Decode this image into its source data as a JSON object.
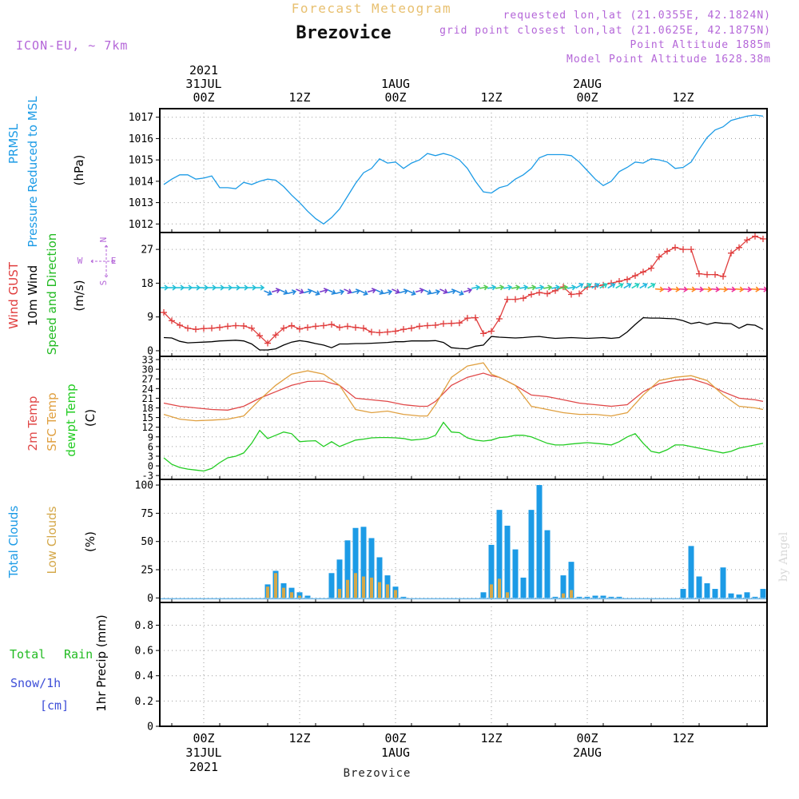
{
  "header": {
    "title_faint": "Forecast Meteogram",
    "station": "Brezovice",
    "model": "ICON-EU, ~ 7km",
    "info": [
      "requested lon,lat (21.0355E, 42.1824N)",
      "grid point closest lon,lat (21.0625E, 42.1875N)",
      "Point Altitude 1885m",
      "Model Point Altitude 1628.38m"
    ],
    "footer_station": "Brezovice",
    "watermark": "by Angel"
  },
  "colors": {
    "pressure": "#1c9be6",
    "gust": "#e03c3c",
    "wind": "#000000",
    "dir": "#22bb22",
    "temp": "#e04848",
    "sfc": "#e0a040",
    "dew": "#22cc22",
    "total_clouds": "#1c9be6",
    "low_clouds": "#d4a84a",
    "rain": "#22bb22",
    "snow": "#3d4ed8",
    "info": "#b466d8",
    "faint": "#e8c070"
  },
  "time_axis": {
    "top_labels": [
      {
        "t": 0,
        "lines": [
          "2021",
          "31JUL",
          "00Z"
        ]
      },
      {
        "t": 12,
        "lines": [
          "12Z"
        ]
      },
      {
        "t": 24,
        "lines": [
          "1AUG",
          "00Z"
        ]
      },
      {
        "t": 36,
        "lines": [
          "12Z"
        ]
      },
      {
        "t": 48,
        "lines": [
          "2AUG",
          "00Z"
        ]
      },
      {
        "t": 60,
        "lines": [
          "12Z"
        ]
      }
    ],
    "bottom_labels": [
      {
        "t": 0,
        "lines": [
          "00Z",
          "31JUL",
          "2021"
        ]
      },
      {
        "t": 12,
        "lines": [
          "12Z"
        ]
      },
      {
        "t": 24,
        "lines": [
          "00Z",
          "1AUG"
        ]
      },
      {
        "t": 36,
        "lines": [
          "12Z"
        ]
      },
      {
        "t": 48,
        "lines": [
          "00Z",
          "2AUG"
        ]
      },
      {
        "t": 60,
        "lines": [
          "12Z"
        ]
      }
    ]
  },
  "chart_data": [
    {
      "type": "line",
      "panel": "pressure",
      "labels": [
        "PRMSL",
        "Pressure Reduced to MSL",
        "(hPa)"
      ],
      "ylim": [
        1011.6,
        1017.4
      ],
      "yticks": [
        1012,
        1013,
        1014,
        1015,
        1016,
        1017
      ],
      "series": [
        {
          "name": "PRMSL",
          "x": [
            -5,
            -4,
            -3,
            -2,
            -1,
            0,
            1,
            2,
            3,
            4,
            5,
            6,
            7,
            8,
            9,
            10,
            11,
            12,
            13,
            14,
            15,
            16,
            17,
            18,
            19,
            20,
            21,
            22,
            23,
            24,
            25,
            26,
            27,
            28,
            29,
            30,
            31,
            32,
            33,
            34,
            35,
            36,
            37,
            38,
            39,
            40,
            41,
            42,
            43,
            44,
            45,
            46,
            47,
            48,
            49,
            50,
            51,
            52,
            53,
            54,
            55,
            56,
            57,
            58,
            59,
            60,
            61,
            62,
            63,
            64,
            65,
            66,
            67,
            68,
            69,
            70
          ],
          "values": [
            1013.85,
            1014.1,
            1014.3,
            1014.3,
            1014.1,
            1014.15,
            1014.25,
            1013.7,
            1013.7,
            1013.65,
            1013.95,
            1013.85,
            1014.0,
            1014.1,
            1014.05,
            1013.75,
            1013.35,
            1013.0,
            1012.6,
            1012.25,
            1012.0,
            1012.3,
            1012.7,
            1013.3,
            1013.9,
            1014.4,
            1014.6,
            1015.05,
            1014.85,
            1014.9,
            1014.6,
            1014.85,
            1015.0,
            1015.3,
            1015.2,
            1015.3,
            1015.2,
            1015.0,
            1014.6,
            1014.0,
            1013.5,
            1013.45,
            1013.7,
            1013.8,
            1014.1,
            1014.3,
            1014.6,
            1015.1,
            1015.25,
            1015.25,
            1015.25,
            1015.2,
            1014.9,
            1014.5,
            1014.1,
            1013.8,
            1014.0,
            1014.45,
            1014.65,
            1014.9,
            1014.85,
            1015.05,
            1015.0,
            1014.9,
            1014.6,
            1014.65,
            1014.9,
            1015.5,
            1016.05,
            1016.4,
            1016.55,
            1016.85,
            1016.95,
            1017.05,
            1017.1,
            1017.05
          ]
        }
      ]
    },
    {
      "type": "line",
      "panel": "wind",
      "labels": [
        "Wind GUST",
        "10m Wind",
        "Speed and Direction",
        "(m/s)"
      ],
      "compass": {
        "n": "N",
        "e": "E",
        "s": "S",
        "w": "W"
      },
      "ylim": [
        -1.5,
        31.5
      ],
      "yticks": [
        0,
        9,
        18,
        27
      ],
      "series": [
        {
          "name": "Wind GUST",
          "x": [
            -5,
            -4,
            -3,
            -2,
            -1,
            0,
            1,
            2,
            3,
            4,
            5,
            6,
            7,
            8,
            9,
            10,
            11,
            12,
            13,
            14,
            15,
            16,
            17,
            18,
            19,
            20,
            21,
            22,
            23,
            24,
            25,
            26,
            27,
            28,
            29,
            30,
            31,
            32,
            33,
            34,
            35,
            36,
            37,
            38,
            39,
            40,
            41,
            42,
            43,
            44,
            45,
            46,
            47,
            48,
            49,
            50,
            51,
            52,
            53,
            54,
            55,
            56,
            57,
            58,
            59,
            60,
            61,
            62,
            63,
            64,
            65,
            66,
            67,
            68,
            69,
            70
          ],
          "values": [
            10.2,
            8.0,
            6.8,
            6.0,
            5.7,
            5.9,
            6.0,
            6.2,
            6.5,
            6.7,
            6.6,
            6.0,
            4.0,
            2.0,
            4.2,
            6.0,
            6.7,
            5.8,
            6.2,
            6.5,
            6.7,
            7.0,
            6.2,
            6.5,
            6.2,
            6.0,
            5.0,
            4.8,
            5.0,
            5.2,
            5.7,
            6.0,
            6.5,
            6.7,
            6.8,
            7.2,
            7.3,
            7.4,
            8.7,
            8.8,
            4.6,
            5.2,
            8.5,
            13.7,
            13.7,
            14.0,
            15.0,
            15.5,
            15.2,
            16.0,
            17.0,
            15.0,
            15.2,
            17.0,
            17.1,
            17.5,
            18.0,
            18.5,
            19.0,
            20.0,
            21.0,
            22.0,
            25.0,
            26.5,
            27.5,
            27.0,
            27.0,
            20.5,
            20.3,
            20.3,
            19.8,
            26.0,
            27.5,
            29.5,
            30.5,
            29.8
          ]
        },
        {
          "name": "10m Wind",
          "x": [
            -5,
            -4,
            -3,
            -2,
            -1,
            0,
            1,
            2,
            3,
            4,
            5,
            6,
            7,
            8,
            9,
            10,
            11,
            12,
            13,
            14,
            15,
            16,
            17,
            18,
            19,
            20,
            21,
            22,
            23,
            24,
            25,
            26,
            27,
            28,
            29,
            30,
            31,
            32,
            33,
            34,
            35,
            36,
            37,
            38,
            39,
            40,
            41,
            42,
            43,
            44,
            45,
            46,
            47,
            48,
            49,
            50,
            51,
            52,
            53,
            54,
            55,
            56,
            57,
            58,
            59,
            60,
            61,
            62,
            63,
            64,
            65,
            66,
            67,
            68,
            69,
            70
          ],
          "values": [
            3.5,
            3.4,
            2.5,
            2.1,
            2.2,
            2.3,
            2.4,
            2.6,
            2.7,
            2.8,
            2.6,
            1.8,
            0.2,
            0.2,
            0.5,
            1.5,
            2.3,
            2.7,
            2.4,
            1.9,
            1.5,
            0.8,
            1.8,
            1.8,
            1.9,
            1.9,
            2.0,
            2.1,
            2.2,
            2.4,
            2.4,
            2.6,
            2.6,
            2.6,
            2.7,
            2.2,
            0.8,
            0.6,
            0.5,
            1.2,
            1.5,
            3.8,
            3.6,
            3.5,
            3.4,
            3.5,
            3.7,
            3.8,
            3.5,
            3.3,
            3.4,
            3.5,
            3.4,
            3.3,
            3.4,
            3.5,
            3.3,
            3.5,
            5.0,
            7.0,
            8.8,
            8.7,
            8.7,
            8.6,
            8.5,
            8.0,
            7.2,
            7.6,
            7.0,
            7.5,
            7.3,
            7.2,
            6.0,
            7.0,
            6.8,
            5.7
          ]
        }
      ]
    },
    {
      "type": "line",
      "panel": "temperature",
      "labels": [
        "2m Temp",
        "SFC Temp",
        "dewpt Temp",
        "(C)"
      ],
      "ylim": [
        -4.2,
        34
      ],
      "yticks": [
        -3,
        0,
        3,
        6,
        9,
        12,
        15,
        18,
        21,
        24,
        27,
        30,
        33
      ],
      "series": [
        {
          "name": "2m Temp",
          "x": [
            -5,
            -3,
            -1,
            1,
            3,
            5,
            7,
            9,
            11,
            13,
            15,
            17,
            19,
            21,
            23,
            25,
            27,
            28,
            29,
            31,
            33,
            35,
            36,
            37,
            39,
            41,
            43,
            45,
            47,
            49,
            51,
            53,
            55,
            57,
            59,
            61,
            63,
            65,
            67,
            69,
            70
          ],
          "values": [
            19.5,
            18.5,
            18.0,
            17.5,
            17.3,
            18.5,
            21.0,
            23.0,
            25.0,
            26.2,
            26.3,
            25.0,
            21.0,
            20.5,
            20.0,
            19.0,
            18.5,
            18.5,
            20.0,
            25.0,
            27.5,
            28.8,
            28.0,
            27.5,
            25.0,
            22.0,
            21.5,
            20.5,
            19.5,
            19.0,
            18.5,
            19.0,
            23.0,
            25.5,
            26.5,
            27.0,
            25.5,
            23.0,
            21.0,
            20.5,
            20.0
          ]
        },
        {
          "name": "SFC Temp",
          "x": [
            -5,
            -3,
            -1,
            1,
            3,
            5,
            7,
            9,
            11,
            13,
            15,
            17,
            19,
            21,
            23,
            25,
            27,
            28,
            29,
            31,
            33,
            35,
            36,
            37,
            39,
            41,
            43,
            45,
            47,
            49,
            51,
            53,
            55,
            57,
            59,
            61,
            63,
            65,
            67,
            69,
            70
          ],
          "values": [
            16.0,
            14.5,
            14.0,
            14.2,
            14.5,
            15.5,
            20.5,
            25.0,
            28.5,
            29.5,
            28.5,
            25.0,
            17.5,
            16.5,
            17.0,
            16.0,
            15.5,
            15.5,
            19.0,
            27.5,
            31.0,
            32.0,
            28.5,
            27.5,
            25.0,
            18.5,
            17.5,
            16.5,
            16.0,
            16.0,
            15.5,
            16.5,
            22.0,
            26.5,
            27.5,
            28.0,
            26.5,
            22.0,
            18.5,
            18.0,
            17.5
          ]
        },
        {
          "name": "dewpt Temp",
          "x": [
            -5,
            -4,
            -3,
            -2,
            -1,
            0,
            1,
            2,
            3,
            4,
            5,
            6,
            7,
            8,
            9,
            10,
            11,
            12,
            13,
            14,
            15,
            16,
            17,
            18,
            19,
            20,
            21,
            22,
            23,
            24,
            25,
            26,
            27,
            28,
            29,
            30,
            31,
            32,
            33,
            34,
            35,
            36,
            37,
            38,
            39,
            40,
            41,
            42,
            43,
            44,
            45,
            46,
            47,
            48,
            49,
            50,
            51,
            52,
            53,
            54,
            55,
            56,
            57,
            58,
            59,
            60,
            61,
            62,
            63,
            64,
            65,
            66,
            67,
            68,
            69,
            70
          ],
          "values": [
            2.5,
            0.5,
            -0.5,
            -1.0,
            -1.3,
            -1.6,
            -0.8,
            1.0,
            2.5,
            3.0,
            4.0,
            7.0,
            11.0,
            8.5,
            9.5,
            10.5,
            10.0,
            7.5,
            7.7,
            7.8,
            6.0,
            7.5,
            6.0,
            7.0,
            8.0,
            8.3,
            8.7,
            8.8,
            8.8,
            8.7,
            8.5,
            8.0,
            8.2,
            8.5,
            9.5,
            13.5,
            10.5,
            10.3,
            8.7,
            8.0,
            7.7,
            8.0,
            8.8,
            9.0,
            9.5,
            9.5,
            9.0,
            8.0,
            7.0,
            6.5,
            6.5,
            6.8,
            7.0,
            7.2,
            7.0,
            6.8,
            6.5,
            7.5,
            9.0,
            10.0,
            7.0,
            4.5,
            4.0,
            5.0,
            6.5,
            6.5,
            6.0,
            5.5,
            5.0,
            4.5,
            4.0,
            4.5,
            5.5,
            6.0,
            6.5,
            7.0
          ]
        }
      ]
    },
    {
      "type": "bar",
      "panel": "clouds",
      "labels": [
        "Total Clouds",
        "Low Clouds",
        "(%)"
      ],
      "ylim": [
        -4,
        105
      ],
      "yticks": [
        0,
        25,
        50,
        75,
        100
      ],
      "series": [
        {
          "name": "Total Clouds",
          "x": [
            8,
            9,
            10,
            11,
            12,
            13,
            16,
            17,
            18,
            19,
            20,
            21,
            22,
            23,
            24,
            25,
            35,
            36,
            37,
            38,
            39,
            40,
            41,
            42,
            43,
            44,
            45,
            46,
            47,
            48,
            49,
            50,
            51,
            52,
            60,
            61,
            62,
            63,
            64,
            65,
            66,
            67,
            68,
            69,
            70
          ],
          "values": [
            12,
            24,
            13,
            9,
            5,
            2,
            22,
            34,
            51,
            62,
            63,
            53,
            36,
            20,
            10,
            1,
            5,
            47,
            78,
            64,
            43,
            18,
            78,
            100,
            60,
            1,
            20,
            32,
            1,
            1,
            2,
            2,
            1,
            1,
            8,
            46,
            19,
            13,
            8,
            27,
            4,
            3,
            5,
            1,
            8
          ]
        },
        {
          "name": "Low Clouds",
          "x": [
            8,
            9,
            10,
            11,
            12,
            17,
            18,
            19,
            20,
            21,
            22,
            23,
            24,
            36,
            37,
            38,
            45,
            46
          ],
          "values": [
            10,
            22,
            9,
            5,
            2,
            8,
            16,
            22,
            19,
            18,
            14,
            12,
            7,
            12,
            17,
            5,
            4,
            7
          ]
        }
      ]
    },
    {
      "type": "line",
      "panel": "precip",
      "labels": [
        "Total",
        "Rain",
        "Snow/1h",
        "[cm]",
        "1hr Precip (mm)"
      ],
      "ylim": [
        0,
        0.98
      ],
      "yticks": [
        0,
        0.2,
        0.4,
        0.6,
        0.8
      ],
      "series": []
    }
  ]
}
